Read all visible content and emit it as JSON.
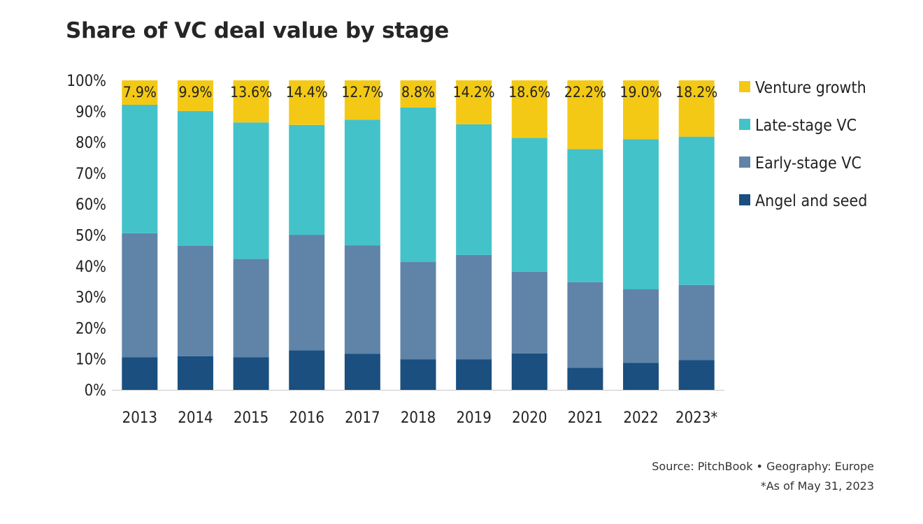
{
  "chart_data": {
    "type": "bar",
    "stacked": true,
    "title": "Share of VC deal value by stage",
    "categories": [
      "2013",
      "2014",
      "2015",
      "2016",
      "2017",
      "2018",
      "2019",
      "2020",
      "2021",
      "2022",
      "2023*"
    ],
    "series": [
      {
        "name": "Angel and seed",
        "color": "#1a4f7f",
        "values": [
          10.5,
          10.9,
          10.5,
          12.8,
          11.7,
          9.9,
          9.9,
          11.8,
          7.1,
          8.7,
          9.6
        ]
      },
      {
        "name": "Early-stage VC",
        "color": "#5f84a8",
        "values": [
          40.1,
          35.6,
          31.8,
          37.3,
          35.0,
          31.4,
          33.7,
          26.4,
          27.7,
          23.8,
          24.3
        ]
      },
      {
        "name": "Late-stage VC",
        "color": "#43c2ca",
        "values": [
          41.5,
          43.6,
          44.1,
          35.5,
          40.6,
          49.9,
          42.2,
          43.2,
          43.0,
          48.5,
          47.9
        ]
      },
      {
        "name": "Venture growth",
        "color": "#f3c916",
        "values": [
          7.9,
          9.9,
          13.6,
          14.4,
          12.7,
          8.8,
          14.2,
          18.6,
          22.2,
          19.0,
          18.2
        ]
      }
    ],
    "data_labels": [
      "7.9%",
      "9.9%",
      "13.6%",
      "14.4%",
      "12.7%",
      "8.8%",
      "14.2%",
      "18.6%",
      "22.2%",
      "19.0%",
      "18.2%"
    ],
    "y_ticks": [
      "0%",
      "10%",
      "20%",
      "30%",
      "40%",
      "50%",
      "60%",
      "70%",
      "80%",
      "90%",
      "100%"
    ],
    "ylim": [
      0,
      100
    ],
    "legend_position": "right",
    "grid": false
  },
  "footer": {
    "source": "Source: PitchBook • Geography: Europe",
    "note": "*As of May 31, 2023"
  }
}
